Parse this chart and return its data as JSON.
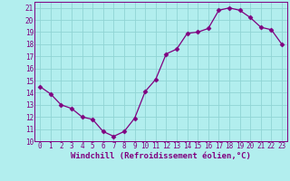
{
  "x": [
    0,
    1,
    2,
    3,
    4,
    5,
    6,
    7,
    8,
    9,
    10,
    11,
    12,
    13,
    14,
    15,
    16,
    17,
    18,
    19,
    20,
    21,
    22,
    23
  ],
  "y": [
    14.5,
    13.9,
    13.0,
    12.7,
    12.0,
    11.8,
    10.8,
    10.4,
    10.8,
    11.9,
    14.1,
    15.1,
    17.2,
    17.6,
    18.9,
    19.0,
    19.3,
    20.8,
    21.0,
    20.8,
    20.2,
    19.4,
    19.2,
    18.0
  ],
  "line_color": "#800080",
  "marker": "D",
  "marker_size": 2.5,
  "bg_color": "#b2eeee",
  "grid_color": "#90d4d4",
  "xlabel": "Windchill (Refroidissement éolien,°C)",
  "xlim": [
    -0.5,
    23.5
  ],
  "ylim": [
    10,
    21.5
  ],
  "yticks": [
    10,
    11,
    12,
    13,
    14,
    15,
    16,
    17,
    18,
    19,
    20,
    21
  ],
  "xticks": [
    0,
    1,
    2,
    3,
    4,
    5,
    6,
    7,
    8,
    9,
    10,
    11,
    12,
    13,
    14,
    15,
    16,
    17,
    18,
    19,
    20,
    21,
    22,
    23
  ],
  "tick_fontsize": 5.5,
  "xlabel_fontsize": 6.5,
  "tick_color": "#800080",
  "label_color": "#800080",
  "spine_color": "#800080"
}
